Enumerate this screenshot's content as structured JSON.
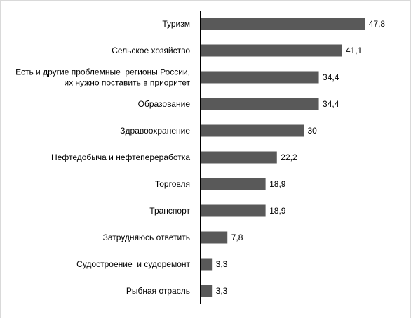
{
  "chart_data": {
    "type": "bar",
    "orientation": "horizontal",
    "categories": [
      [
        "Туризм"
      ],
      [
        "Сельское хозяйство"
      ],
      [
        "Есть и другие проблемные  регионы России,",
        "их нужно поставить в приоритет"
      ],
      [
        "Образование"
      ],
      [
        "Здравоохранение"
      ],
      [
        "Нефтедобыча и нефтепереработка"
      ],
      [
        "Торговля"
      ],
      [
        "Транспорт"
      ],
      [
        "Затрудняюсь ответить"
      ],
      [
        "Судостроение  и судоремонт"
      ],
      [
        "Рыбная отрасль"
      ]
    ],
    "values": [
      47.8,
      41.1,
      34.4,
      34.4,
      30,
      22.2,
      18.9,
      18.9,
      7.8,
      3.3,
      3.3
    ],
    "value_labels": [
      "47,8",
      "41,1",
      "34,4",
      "34,4",
      "30",
      "22,2",
      "18,9",
      "18,9",
      "7,8",
      "3,3",
      "3,3"
    ],
    "xlim": [
      0,
      50
    ],
    "grid": false,
    "legend": "none",
    "bar_color": "#595959",
    "axis_color": "#000000",
    "border_color": "#d9d9d9"
  }
}
